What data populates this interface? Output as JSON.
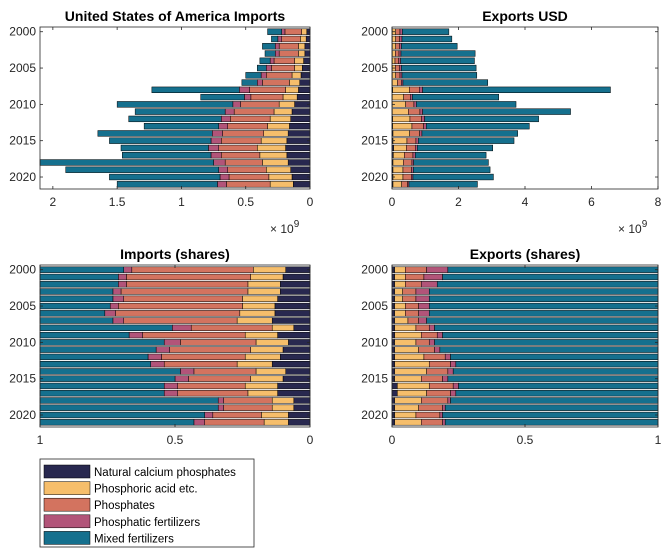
{
  "colors": {
    "natural_calcium_phosphates": "#28284f",
    "phosphoric_acid": "#f6be6b",
    "phosphates": "#d3735f",
    "phosphatic_fertilizers": "#b25479",
    "mixed_fertilizers": "#15708e"
  },
  "legend": [
    {
      "key": "natural_calcium_phosphates",
      "label": "Natural calcium phosphates"
    },
    {
      "key": "phosphoric_acid",
      "label": "Phosphoric acid etc."
    },
    {
      "key": "phosphates",
      "label": "Phosphates"
    },
    {
      "key": "phosphatic_fertilizers",
      "label": "Phosphatic fertilizers"
    },
    {
      "key": "mixed_fertilizers",
      "label": "Mixed fertilizers"
    }
  ],
  "chart_data": [
    {
      "id": "imports",
      "type": "bar",
      "orientation": "horizontal",
      "stacked": true,
      "title": "United States of America Imports",
      "x_reversed": true,
      "xlim": [
        0,
        2100000000
      ],
      "xticks": [
        0,
        500000000,
        1000000000,
        1500000000,
        2000000000
      ],
      "xtick_labels": [
        "0",
        "0.5",
        "1",
        "1.5",
        "2"
      ],
      "exponent_label": "× 10",
      "exponent_power": "9",
      "years": [
        2000,
        2001,
        2002,
        2003,
        2004,
        2005,
        2006,
        2007,
        2008,
        2009,
        2010,
        2011,
        2012,
        2013,
        2014,
        2015,
        2016,
        2017,
        2018,
        2019,
        2020,
        2021
      ],
      "ytick_labels": [
        "2000",
        "2005",
        "2010",
        "2015",
        "2020"
      ],
      "ytick_years": [
        2000,
        2005,
        2010,
        2015,
        2020
      ],
      "series": [
        {
          "key": "natural_calcium_phosphates",
          "values": [
            25000000,
            30000000,
            40000000,
            40000000,
            50000000,
            60000000,
            70000000,
            80000000,
            90000000,
            100000000,
            120000000,
            140000000,
            150000000,
            160000000,
            170000000,
            180000000,
            190000000,
            180000000,
            170000000,
            150000000,
            140000000,
            130000000
          ]
        },
        {
          "key": "phosphoric_acid",
          "values": [
            40000000,
            45000000,
            50000000,
            50000000,
            70000000,
            60000000,
            70000000,
            80000000,
            100000000,
            110000000,
            120000000,
            140000000,
            160000000,
            170000000,
            190000000,
            200000000,
            220000000,
            210000000,
            200000000,
            190000000,
            180000000,
            180000000
          ]
        },
        {
          "key": "phosphates",
          "values": [
            130000000,
            145000000,
            150000000,
            150000000,
            160000000,
            180000000,
            200000000,
            210000000,
            280000000,
            250000000,
            300000000,
            310000000,
            310000000,
            310000000,
            320000000,
            310000000,
            300000000,
            300000000,
            290000000,
            300000000,
            310000000,
            340000000
          ]
        },
        {
          "key": "phosphatic_fertilizers",
          "values": [
            25000000,
            30000000,
            30000000,
            30000000,
            30000000,
            40000000,
            40000000,
            40000000,
            80000000,
            50000000,
            60000000,
            70000000,
            70000000,
            70000000,
            80000000,
            80000000,
            80000000,
            80000000,
            90000000,
            70000000,
            70000000,
            70000000
          ]
        },
        {
          "key": "mixed_fertilizers",
          "values": [
            110000000,
            50000000,
            100000000,
            80000000,
            80000000,
            70000000,
            120000000,
            120000000,
            680000000,
            340000000,
            900000000,
            700000000,
            720000000,
            580000000,
            890000000,
            790000000,
            680000000,
            690000000,
            1350000000,
            1190000000,
            860000000,
            780000000
          ]
        }
      ]
    },
    {
      "id": "exports",
      "type": "bar",
      "orientation": "horizontal",
      "stacked": true,
      "title": "Exports USD",
      "x_reversed": false,
      "xlim": [
        0,
        8000000000
      ],
      "xticks": [
        0,
        2000000000,
        4000000000,
        6000000000,
        8000000000
      ],
      "xtick_labels": [
        "0",
        "2",
        "4",
        "6",
        "8"
      ],
      "exponent_label": "× 10",
      "exponent_power": "9",
      "years": [
        2000,
        2001,
        2002,
        2003,
        2004,
        2005,
        2006,
        2007,
        2008,
        2009,
        2010,
        2011,
        2012,
        2013,
        2014,
        2015,
        2016,
        2017,
        2018,
        2019,
        2020,
        2021
      ],
      "ytick_labels": [
        "2000",
        "2005",
        "2010",
        "2015",
        "2020"
      ],
      "ytick_years": [
        2000,
        2005,
        2010,
        2015,
        2020
      ],
      "series": [
        {
          "key": "natural_calcium_phosphates",
          "values": [
            10000000,
            10000000,
            10000000,
            10000000,
            10000000,
            10000000,
            10000000,
            10000000,
            20000000,
            10000000,
            10000000,
            10000000,
            20000000,
            20000000,
            30000000,
            30000000,
            50000000,
            40000000,
            30000000,
            30000000,
            30000000,
            30000000
          ]
        },
        {
          "key": "phosphoric_acid",
          "values": [
            100000000,
            100000000,
            100000000,
            90000000,
            80000000,
            90000000,
            100000000,
            150000000,
            500000000,
            340000000,
            400000000,
            480000000,
            520000000,
            580000000,
            500000000,
            420000000,
            380000000,
            330000000,
            310000000,
            300000000,
            300000000,
            260000000
          ]
        },
        {
          "key": "phosphates",
          "values": [
            130000000,
            120000000,
            110000000,
            110000000,
            110000000,
            120000000,
            130000000,
            120000000,
            300000000,
            200000000,
            250000000,
            350000000,
            350000000,
            350000000,
            300000000,
            270000000,
            270000000,
            260000000,
            260000000,
            260000000,
            250000000,
            180000000
          ]
        },
        {
          "key": "phosphatic_fertilizers",
          "values": [
            70000000,
            70000000,
            60000000,
            60000000,
            60000000,
            60000000,
            60000000,
            50000000,
            100000000,
            60000000,
            70000000,
            80000000,
            90000000,
            80000000,
            70000000,
            70000000,
            60000000,
            70000000,
            50000000,
            50000000,
            50000000,
            40000000
          ]
        },
        {
          "key": "mixed_fertilizers",
          "values": [
            1400000000,
            1500000000,
            1680000000,
            2230000000,
            2220000000,
            2250000000,
            2250000000,
            2550000000,
            5650000000,
            2600000000,
            3000000000,
            4450000000,
            3430000000,
            3100000000,
            2880000000,
            2880000000,
            2270000000,
            2130000000,
            2250000000,
            2310000000,
            2420000000,
            2060000000
          ]
        }
      ]
    },
    {
      "id": "imports_shares",
      "type": "bar",
      "orientation": "horizontal",
      "stacked": true,
      "normalized": true,
      "title": "Imports (shares)",
      "x_reversed": true,
      "xlim": [
        0,
        1
      ],
      "xticks": [
        0,
        0.5,
        1
      ],
      "xtick_labels": [
        "0",
        "0.5",
        "1"
      ],
      "years": [
        2000,
        2001,
        2002,
        2003,
        2004,
        2005,
        2006,
        2007,
        2008,
        2009,
        2010,
        2011,
        2012,
        2013,
        2014,
        2015,
        2016,
        2017,
        2018,
        2019,
        2020,
        2021
      ],
      "ytick_labels": [
        "2000",
        "2005",
        "2010",
        "2015",
        "2020"
      ],
      "ytick_years": [
        2000,
        2005,
        2010,
        2015,
        2020
      ],
      "series": [
        {
          "key": "natural_calcium_phosphates",
          "values": [
            0.09,
            0.1,
            0.11,
            0.11,
            0.12,
            0.13,
            0.13,
            0.14,
            0.06,
            0.12,
            0.08,
            0.1,
            0.11,
            0.14,
            0.09,
            0.1,
            0.12,
            0.12,
            0.06,
            0.06,
            0.08,
            0.08
          ]
        },
        {
          "key": "phosphoric_acid",
          "values": [
            0.12,
            0.12,
            0.12,
            0.12,
            0.13,
            0.12,
            0.13,
            0.13,
            0.08,
            0.12,
            0.12,
            0.12,
            0.13,
            0.13,
            0.11,
            0.12,
            0.12,
            0.11,
            0.08,
            0.08,
            0.1,
            0.09
          ]
        },
        {
          "key": "phosphates",
          "values": [
            0.45,
            0.46,
            0.45,
            0.47,
            0.44,
            0.46,
            0.46,
            0.42,
            0.3,
            0.38,
            0.28,
            0.3,
            0.31,
            0.27,
            0.23,
            0.23,
            0.25,
            0.26,
            0.18,
            0.18,
            0.18,
            0.22
          ]
        },
        {
          "key": "phosphatic_fertilizers",
          "values": [
            0.03,
            0.03,
            0.03,
            0.03,
            0.04,
            0.03,
            0.04,
            0.04,
            0.07,
            0.05,
            0.06,
            0.05,
            0.05,
            0.05,
            0.05,
            0.05,
            0.05,
            0.05,
            0.02,
            0.02,
            0.03,
            0.04
          ]
        },
        {
          "key": "mixed_fertilizers",
          "values": [
            0.31,
            0.29,
            0.29,
            0.27,
            0.27,
            0.26,
            0.24,
            0.27,
            0.49,
            0.33,
            0.46,
            0.43,
            0.4,
            0.41,
            0.52,
            0.5,
            0.46,
            0.46,
            0.66,
            0.66,
            0.61,
            0.57
          ]
        }
      ]
    },
    {
      "id": "exports_shares",
      "type": "bar",
      "orientation": "horizontal",
      "stacked": true,
      "normalized": true,
      "title": "Exports (shares)",
      "x_reversed": false,
      "xlim": [
        0,
        1
      ],
      "xticks": [
        0,
        0.5,
        1
      ],
      "xtick_labels": [
        "0",
        "0.5",
        "1"
      ],
      "years": [
        2000,
        2001,
        2002,
        2003,
        2004,
        2005,
        2006,
        2007,
        2008,
        2009,
        2010,
        2011,
        2012,
        2013,
        2014,
        2015,
        2016,
        2017,
        2018,
        2019,
        2020,
        2021
      ],
      "ytick_labels": [
        "2000",
        "2005",
        "2010",
        "2015",
        "2020"
      ],
      "ytick_years": [
        2000,
        2005,
        2010,
        2015,
        2020
      ],
      "series": [
        {
          "key": "natural_calcium_phosphates",
          "values": [
            0.01,
            0.01,
            0.01,
            0.01,
            0.01,
            0.01,
            0.01,
            0.01,
            0.01,
            0.01,
            0.01,
            0.01,
            0.01,
            0.01,
            0.01,
            0.01,
            0.02,
            0.02,
            0.01,
            0.01,
            0.01,
            0.01
          ]
        },
        {
          "key": "phosphoric_acid",
          "values": [
            0.04,
            0.04,
            0.04,
            0.03,
            0.03,
            0.04,
            0.04,
            0.05,
            0.08,
            0.1,
            0.08,
            0.09,
            0.11,
            0.13,
            0.12,
            0.1,
            0.12,
            0.11,
            0.1,
            0.09,
            0.08,
            0.1
          ]
        },
        {
          "key": "phosphates",
          "values": [
            0.08,
            0.07,
            0.06,
            0.05,
            0.05,
            0.05,
            0.05,
            0.04,
            0.05,
            0.06,
            0.05,
            0.06,
            0.08,
            0.08,
            0.08,
            0.08,
            0.09,
            0.09,
            0.1,
            0.09,
            0.09,
            0.08
          ]
        },
        {
          "key": "phosphatic_fertilizers",
          "values": [
            0.08,
            0.07,
            0.06,
            0.05,
            0.05,
            0.04,
            0.04,
            0.03,
            0.02,
            0.02,
            0.02,
            0.02,
            0.02,
            0.02,
            0.02,
            0.02,
            0.02,
            0.02,
            0.01,
            0.01,
            0.01,
            0.01
          ]
        },
        {
          "key": "mixed_fertilizers",
          "values": [
            0.79,
            0.81,
            0.83,
            0.86,
            0.86,
            0.86,
            0.86,
            0.87,
            0.84,
            0.81,
            0.84,
            0.82,
            0.78,
            0.76,
            0.77,
            0.79,
            0.75,
            0.76,
            0.78,
            0.8,
            0.81,
            0.8
          ]
        }
      ]
    }
  ]
}
